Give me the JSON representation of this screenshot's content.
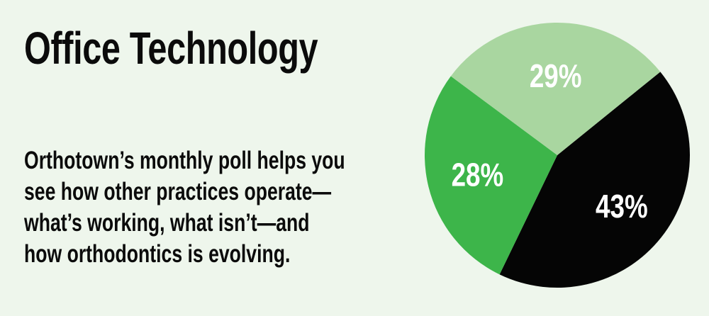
{
  "title": "Office Technology",
  "description_lines": [
    "Orthotown’s monthly poll helps you",
    "see how other practices operate—",
    "what’s working, what isn’t—and",
    "how orthodontics is evolving."
  ],
  "colors": {
    "background": "#eef6ec",
    "text": "#0b0b0b",
    "slice_black": "#050505",
    "slice_light_green": "#a9d6a0",
    "slice_green": "#3db54a",
    "slice_label": "#ffffff"
  },
  "chart_data": {
    "type": "pie",
    "title": "",
    "slices": [
      {
        "label": "43%",
        "value": 43,
        "color": "#050505"
      },
      {
        "label": "28%",
        "value": 28,
        "color": "#3db54a"
      },
      {
        "label": "29%",
        "value": 29,
        "color": "#a9d6a0"
      }
    ],
    "legend": "none"
  }
}
